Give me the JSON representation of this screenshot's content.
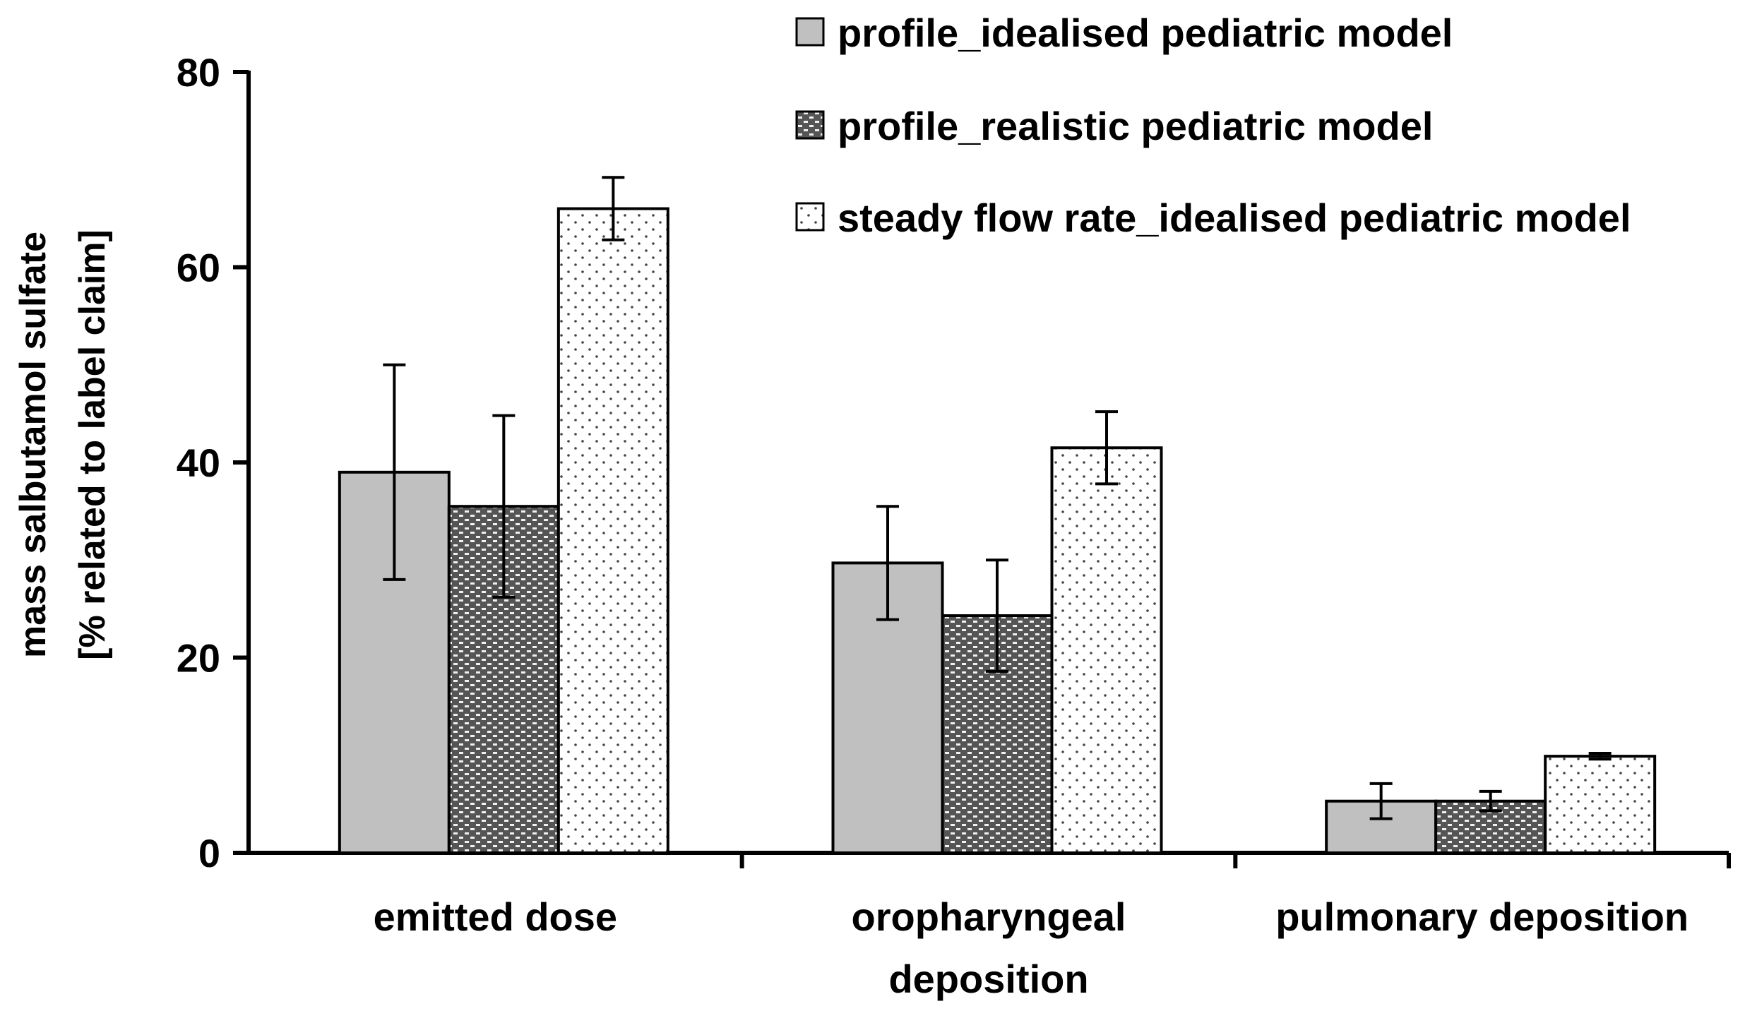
{
  "chart_data": {
    "type": "bar",
    "title": "",
    "xlabel": "",
    "ylabel_lines": [
      "mass salbutamol sulfate",
      "[% related to label claim]"
    ],
    "ylim": [
      0,
      80
    ],
    "yticks": [
      0,
      20,
      40,
      60,
      80
    ],
    "categories": [
      {
        "name": "emitted dose",
        "lines": [
          "emitted dose"
        ]
      },
      {
        "name": "oropharyngeal deposition",
        "lines": [
          "oropharyngeal",
          "deposition"
        ]
      },
      {
        "name": "pulmonary deposition",
        "lines": [
          "pulmonary deposition"
        ]
      }
    ],
    "series": [
      {
        "name": "profile_idealised pediatric model",
        "pattern": "solid-gray",
        "values": [
          39.0,
          29.7,
          5.3
        ],
        "errors": [
          11.0,
          5.8,
          1.8
        ]
      },
      {
        "name": "profile_realistic pediatric model",
        "pattern": "dark-dotted",
        "values": [
          35.5,
          24.3,
          5.3
        ],
        "errors": [
          9.3,
          5.7,
          1.0
        ]
      },
      {
        "name": "steady flow rate_idealised pediatric model",
        "pattern": "light-dotted",
        "values": [
          66.0,
          41.5,
          9.9
        ],
        "errors": [
          3.2,
          3.7,
          0.3
        ]
      }
    ],
    "legend_position": "top-right",
    "grid": false
  }
}
